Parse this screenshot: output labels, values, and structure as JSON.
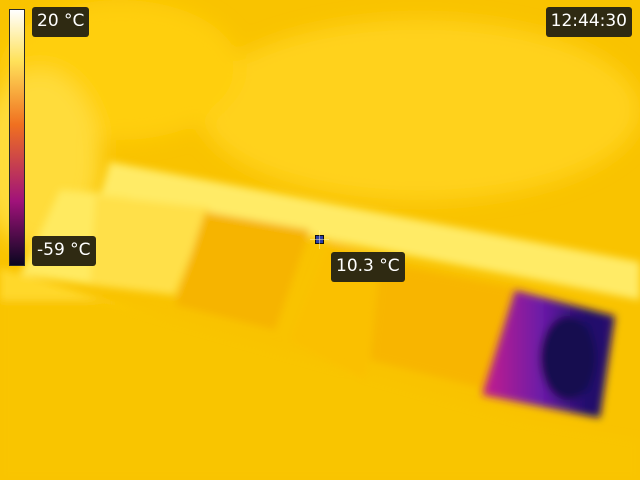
{
  "colors": {
    "scale_top": "#ffffff",
    "scale_upper": "#ffe25a",
    "scale_mid": "#f07020",
    "scale_lower": "#a0127a",
    "scale_bottom": "#0a0620",
    "label_bg": "#2f2a12",
    "crosshair": "#2b3fa8"
  },
  "scale": {
    "max_label": "20 °C",
    "min_label": "-59 °C"
  },
  "clock": "12:44:30",
  "spot": {
    "reading": "10.3 °C",
    "icon": "crosshair-icon"
  }
}
